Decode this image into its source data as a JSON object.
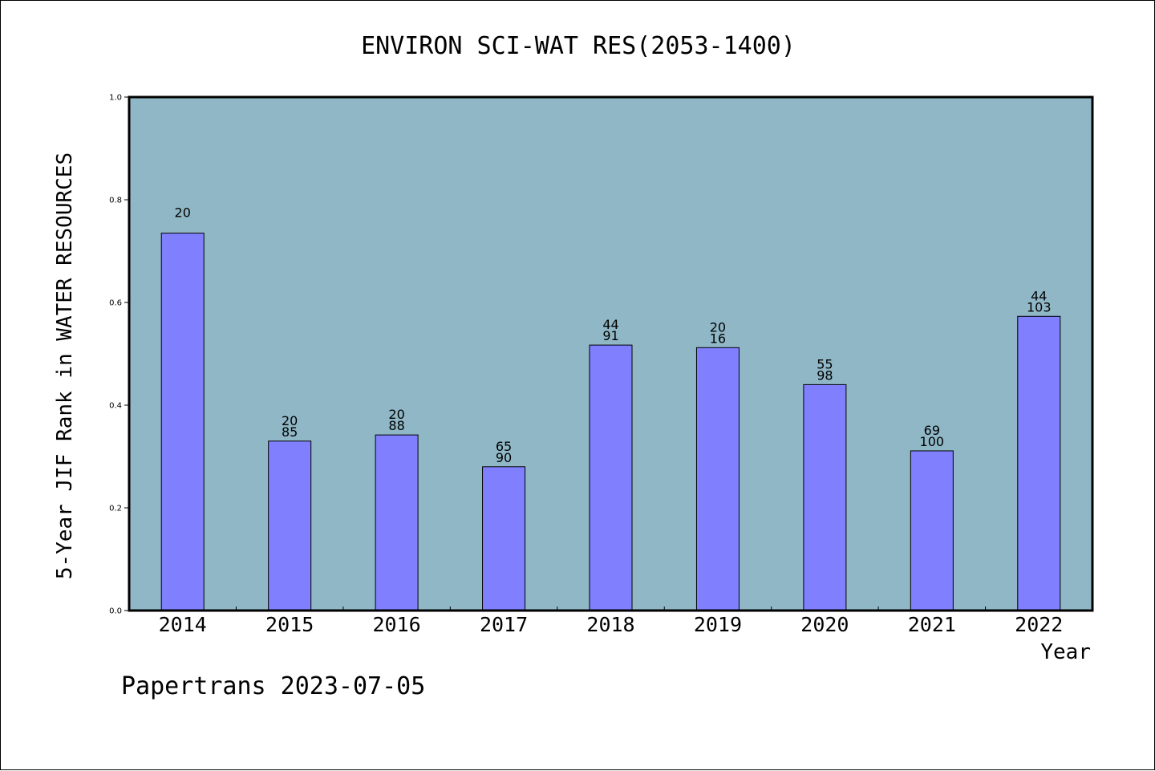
{
  "chart_data": {
    "type": "bar",
    "title": "ENVIRON SCI-WAT RES(2053-1400)",
    "xlabel": "Year",
    "ylabel": "5-Year JIF Rank in WATER RESOURCES",
    "ylim": [
      0.0,
      1.0
    ],
    "yticks": [
      "0.0",
      "0.2",
      "0.4",
      "0.6",
      "0.8",
      "1.0"
    ],
    "ytick_values": [
      0.0,
      0.2,
      0.4,
      0.6,
      0.8,
      1.0
    ],
    "categories": [
      "2014",
      "2015",
      "2016",
      "2017",
      "2018",
      "2019",
      "2020",
      "2021",
      "2022"
    ],
    "values": [
      0.735,
      0.33,
      0.342,
      0.28,
      0.517,
      0.512,
      0.44,
      0.311,
      0.573
    ],
    "labels_top": [
      "20",
      "20",
      "20",
      "65",
      "44",
      "20",
      "55",
      "69",
      "44"
    ],
    "labels_bottom": [
      "",
      "85",
      "88",
      "90",
      "91",
      "16",
      "98",
      "100",
      "103"
    ],
    "bar_color": "#8080ff",
    "plot_background": "#8fb7c6",
    "grid": false
  },
  "footer": "Papertrans 2023-07-05"
}
